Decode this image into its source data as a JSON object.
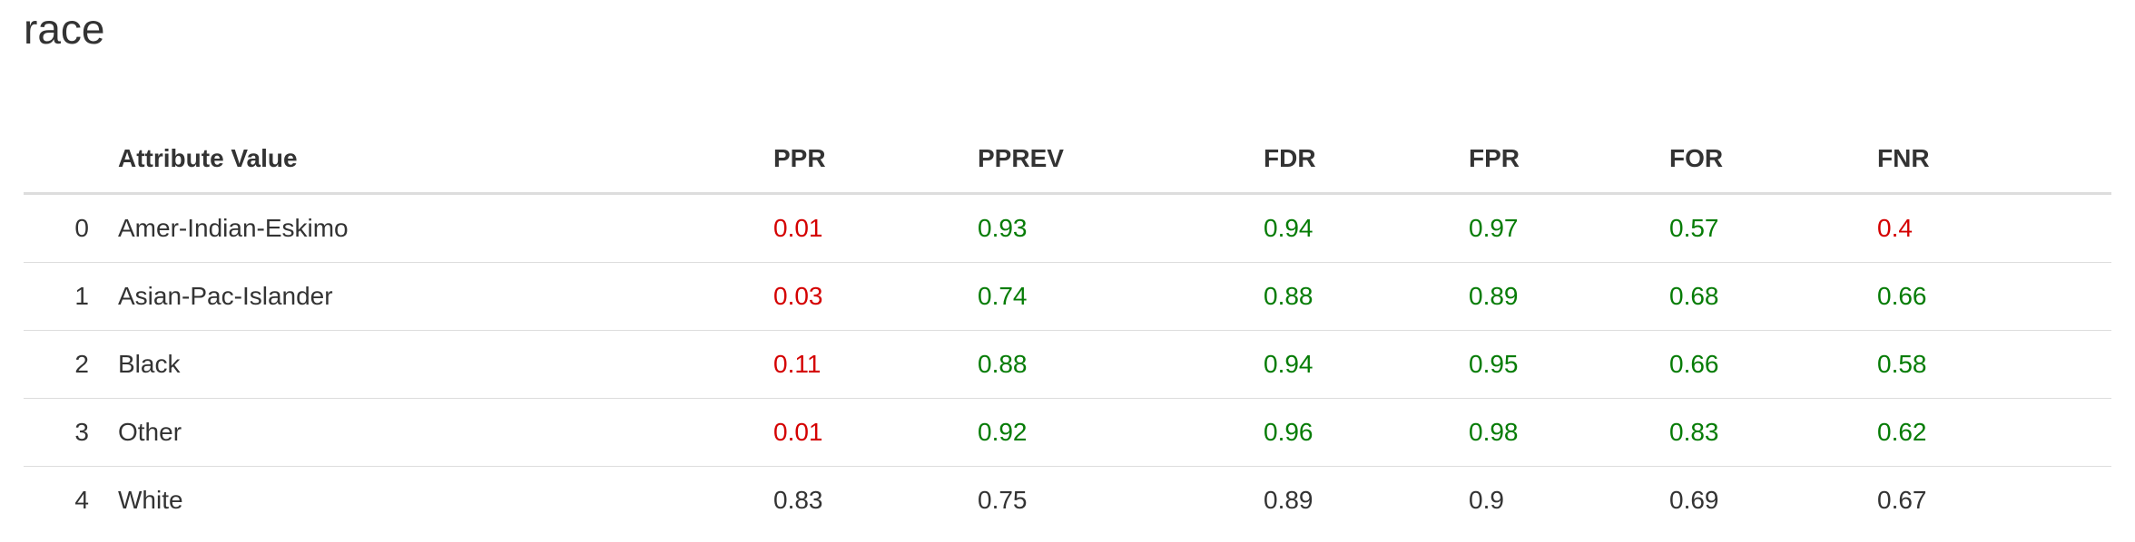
{
  "title": "race",
  "table": {
    "headers": [
      "",
      "Attribute Value",
      "PPR",
      "PPREV",
      "FDR",
      "FPR",
      "FOR",
      "FNR"
    ],
    "rows": [
      {
        "index": "0",
        "attribute": "Amer-Indian-Eskimo",
        "cells": [
          {
            "value": "0.01",
            "status": "red"
          },
          {
            "value": "0.93",
            "status": "green"
          },
          {
            "value": "0.94",
            "status": "green"
          },
          {
            "value": "0.97",
            "status": "green"
          },
          {
            "value": "0.57",
            "status": "green"
          },
          {
            "value": "0.4",
            "status": "red"
          }
        ]
      },
      {
        "index": "1",
        "attribute": "Asian-Pac-Islander",
        "cells": [
          {
            "value": "0.03",
            "status": "red"
          },
          {
            "value": "0.74",
            "status": "green"
          },
          {
            "value": "0.88",
            "status": "green"
          },
          {
            "value": "0.89",
            "status": "green"
          },
          {
            "value": "0.68",
            "status": "green"
          },
          {
            "value": "0.66",
            "status": "green"
          }
        ]
      },
      {
        "index": "2",
        "attribute": "Black",
        "cells": [
          {
            "value": "0.11",
            "status": "red"
          },
          {
            "value": "0.88",
            "status": "green"
          },
          {
            "value": "0.94",
            "status": "green"
          },
          {
            "value": "0.95",
            "status": "green"
          },
          {
            "value": "0.66",
            "status": "green"
          },
          {
            "value": "0.58",
            "status": "green"
          }
        ]
      },
      {
        "index": "3",
        "attribute": "Other",
        "cells": [
          {
            "value": "0.01",
            "status": "red"
          },
          {
            "value": "0.92",
            "status": "green"
          },
          {
            "value": "0.96",
            "status": "green"
          },
          {
            "value": "0.98",
            "status": "green"
          },
          {
            "value": "0.83",
            "status": "green"
          },
          {
            "value": "0.62",
            "status": "green"
          }
        ]
      },
      {
        "index": "4",
        "attribute": "White",
        "cells": [
          {
            "value": "0.83",
            "status": "plain"
          },
          {
            "value": "0.75",
            "status": "plain"
          },
          {
            "value": "0.89",
            "status": "plain"
          },
          {
            "value": "0.9",
            "status": "plain"
          },
          {
            "value": "0.69",
            "status": "plain"
          },
          {
            "value": "0.67",
            "status": "plain"
          }
        ]
      }
    ]
  },
  "colors": {
    "red": "#d40000",
    "green": "#067c06",
    "plain": "#333333"
  }
}
